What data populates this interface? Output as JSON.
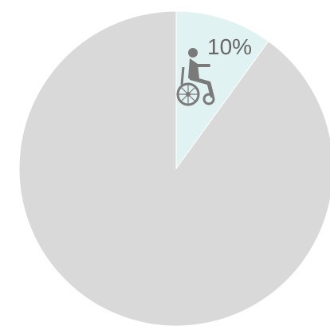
{
  "chart_data": {
    "type": "pie",
    "slices": [
      {
        "label": "",
        "value": 10,
        "color": "#e0f2f1",
        "value_label": "10%",
        "icon": "wheelchair-user-icon"
      },
      {
        "label": "",
        "value": 90,
        "color": "#d9d9d9",
        "value_label": ""
      }
    ],
    "start_angle": "12 o'clock",
    "direction": "clockwise",
    "legend": "none"
  }
}
